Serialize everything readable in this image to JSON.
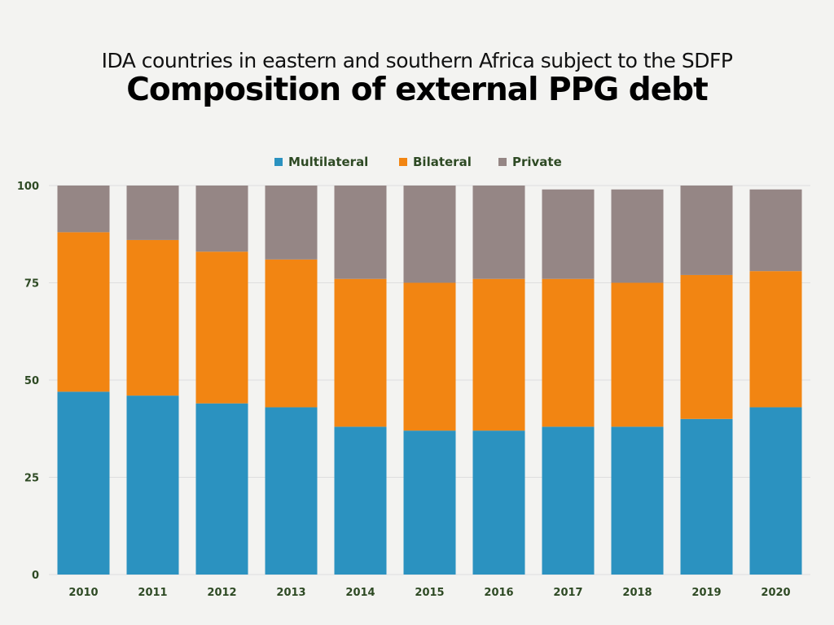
{
  "subtitle": "IDA countries in eastern and southern Africa subject to the SDFP",
  "title": "Composition of external PPG debt",
  "chart_data": {
    "type": "bar",
    "stacked": true,
    "categories": [
      "2010",
      "2011",
      "2012",
      "2013",
      "2014",
      "2015",
      "2016",
      "2017",
      "2018",
      "2019",
      "2020"
    ],
    "series": [
      {
        "name": "Multilateral",
        "color": "#2b92c0",
        "values": [
          47,
          46,
          44,
          43,
          38,
          37,
          37,
          38,
          38,
          40,
          43
        ]
      },
      {
        "name": "Bilateral",
        "color": "#f28512",
        "values": [
          41,
          40,
          39,
          38,
          38,
          38,
          39,
          38,
          37,
          37,
          35
        ]
      },
      {
        "name": "Private",
        "color": "#958685",
        "values": [
          12,
          14,
          17,
          19,
          24,
          25,
          24,
          23,
          24,
          23,
          21
        ]
      }
    ],
    "yticks": [
      0,
      25,
      50,
      75,
      100
    ],
    "ylim": [
      0,
      100
    ],
    "xlabel": "",
    "ylabel": "",
    "legend_position": "top-center",
    "grid": true
  }
}
